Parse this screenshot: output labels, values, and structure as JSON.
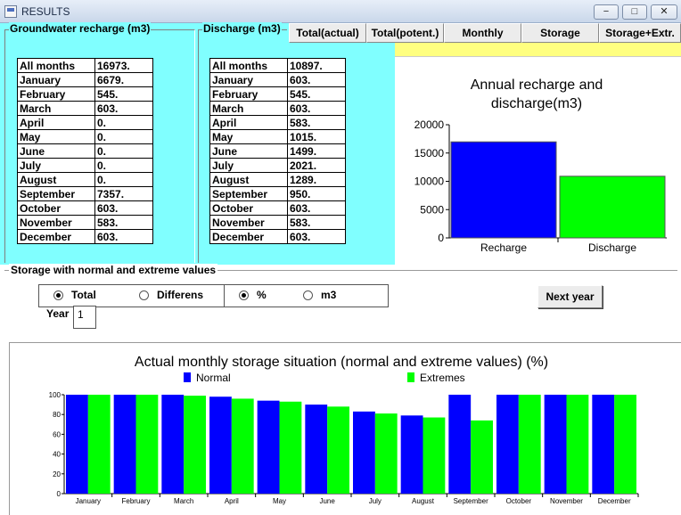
{
  "window": {
    "title": "RESULTS",
    "minimize": "−",
    "maximize": "□",
    "close": "✕"
  },
  "recharge": {
    "label": "Groundwater recharge (m3)",
    "rows": [
      {
        "month": "All months",
        "value": "16973."
      },
      {
        "month": "January",
        "value": "6679."
      },
      {
        "month": "February",
        "value": "545."
      },
      {
        "month": "March",
        "value": "603."
      },
      {
        "month": "April",
        "value": "0."
      },
      {
        "month": "May",
        "value": "0."
      },
      {
        "month": "June",
        "value": "0."
      },
      {
        "month": "July",
        "value": "0."
      },
      {
        "month": "August",
        "value": "0."
      },
      {
        "month": "September",
        "value": "7357."
      },
      {
        "month": "October",
        "value": "603."
      },
      {
        "month": "November",
        "value": "583."
      },
      {
        "month": "December",
        "value": "603."
      }
    ]
  },
  "discharge": {
    "label": "Discharge (m3)",
    "rows": [
      {
        "month": "All months",
        "value": "10897."
      },
      {
        "month": "January",
        "value": "603."
      },
      {
        "month": "February",
        "value": "545."
      },
      {
        "month": "March",
        "value": "603."
      },
      {
        "month": "April",
        "value": "583."
      },
      {
        "month": "May",
        "value": "1015."
      },
      {
        "month": "June",
        "value": "1499."
      },
      {
        "month": "July",
        "value": "2021."
      },
      {
        "month": "August",
        "value": "1289."
      },
      {
        "month": "September",
        "value": "950."
      },
      {
        "month": "October",
        "value": "603."
      },
      {
        "month": "November",
        "value": "583."
      },
      {
        "month": "December",
        "value": "603."
      }
    ]
  },
  "tabs": [
    {
      "label": "Total(actual)"
    },
    {
      "label": "Total(potent.)"
    },
    {
      "label": "Monthly"
    },
    {
      "label": "Storage"
    },
    {
      "label": "Storage+Extr."
    }
  ],
  "storage": {
    "label": "Storage with normal and extreme values",
    "options": {
      "total": "Total",
      "differens": "Differens",
      "percent": "%",
      "m3": "m3"
    },
    "year_label": "Year",
    "year_value": "1",
    "next_year": "Next year"
  },
  "chart_data": [
    {
      "type": "bar",
      "title": "Annual recharge and discharge(m3)",
      "categories": [
        "Recharge",
        "Discharge"
      ],
      "values": [
        16973,
        10897
      ],
      "colors": [
        "#0000ff",
        "#00ff00"
      ],
      "ylim": [
        0,
        20000
      ],
      "yticks": [
        "0",
        "5000",
        "10000",
        "15000",
        "20000"
      ],
      "grid": false
    },
    {
      "type": "bar",
      "title": "Actual monthly storage situation (normal and extreme values) (%)",
      "categories": [
        "January",
        "February",
        "March",
        "April",
        "May",
        "June",
        "July",
        "August",
        "September",
        "October",
        "November",
        "December"
      ],
      "series": [
        {
          "name": "Normal",
          "color": "#0000ff",
          "values": [
            100,
            100,
            100,
            98,
            94,
            90,
            83,
            79,
            100,
            100,
            100,
            100
          ]
        },
        {
          "name": "Extremes",
          "color": "#00ff00",
          "values": [
            100,
            100,
            99,
            96,
            93,
            88,
            81,
            77,
            74,
            100,
            100,
            100
          ]
        }
      ],
      "ylim": [
        0,
        100
      ],
      "yticks": [
        "0",
        "20",
        "40",
        "60",
        "80",
        "100"
      ],
      "legend": "top",
      "grid": false
    }
  ]
}
